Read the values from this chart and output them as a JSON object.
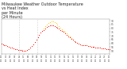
{
  "title": "Milwaukee Weather Outdoor Temperature\nvs Heat Index\nper Minute\n(24 Hours)",
  "title_fontsize": 3.5,
  "bg_color": "#ffffff",
  "line_color": "#ff0000",
  "heat_color": "#ffcc00",
  "vline_color": "#aaaaaa",
  "dot_size": 0.5,
  "ylim": [
    46,
    92
  ],
  "yticks": [
    50,
    55,
    60,
    65,
    70,
    75,
    80,
    85,
    90
  ],
  "xlim": [
    0,
    1440
  ],
  "xtick_count": 24,
  "temp_data": [
    60,
    59,
    58,
    57,
    56,
    55,
    54,
    54,
    53,
    52,
    52,
    51,
    51,
    51,
    50,
    50,
    50,
    51,
    52,
    54,
    56,
    59,
    62,
    65,
    68,
    71,
    74,
    76,
    78,
    80,
    82,
    83,
    84,
    84,
    84,
    83,
    82,
    81,
    80,
    78,
    77,
    75,
    73,
    71,
    69,
    68,
    66,
    65,
    63,
    62,
    61,
    60,
    59,
    58,
    58,
    57,
    57,
    56,
    56,
    55,
    55,
    55,
    54,
    54,
    54,
    54,
    53,
    53,
    53,
    52,
    52,
    52
  ],
  "heat_data": [
    60,
    59,
    58,
    57,
    56,
    55,
    54,
    54,
    53,
    52,
    52,
    51,
    51,
    51,
    50,
    50,
    50,
    51,
    52,
    54,
    56,
    59,
    62,
    65,
    68,
    71,
    74,
    76,
    80,
    83,
    85,
    87,
    88,
    89,
    89,
    88,
    87,
    85,
    83,
    81,
    79,
    77,
    75,
    73,
    71,
    69,
    67,
    65,
    63,
    62,
    61,
    60,
    59,
    58,
    58,
    57,
    57,
    56,
    56,
    55,
    55,
    55,
    54,
    54,
    54,
    54,
    53,
    53,
    53,
    52,
    52,
    52
  ],
  "vline_positions": [
    240,
    480
  ],
  "ylabel_color": "#555555",
  "xlabel_color": "#555555"
}
